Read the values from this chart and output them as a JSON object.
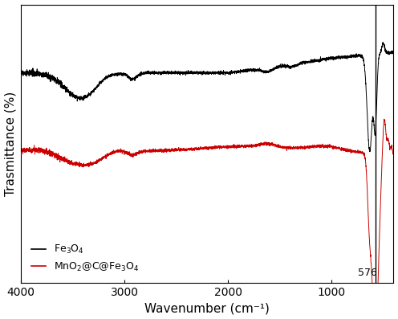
{
  "title": "",
  "xlabel": "Wavenumber (cm⁻¹)",
  "ylabel": "Trasmittance (%)",
  "xlim": [
    4000,
    400
  ],
  "vline_x": 576,
  "vline_label": "576",
  "black_label": "Fe$_3$O$_4$",
  "red_label": "MnO$_2$@C@Fe$_3$O$_4$",
  "line_color_black": "#000000",
  "line_color_red": "#cc0000",
  "background": "#ffffff",
  "xticks": [
    4000,
    3000,
    2000,
    1000
  ],
  "seed": 42,
  "black_base": 0.78,
  "red_base": 0.47,
  "ylim": [
    -0.05,
    1.05
  ]
}
